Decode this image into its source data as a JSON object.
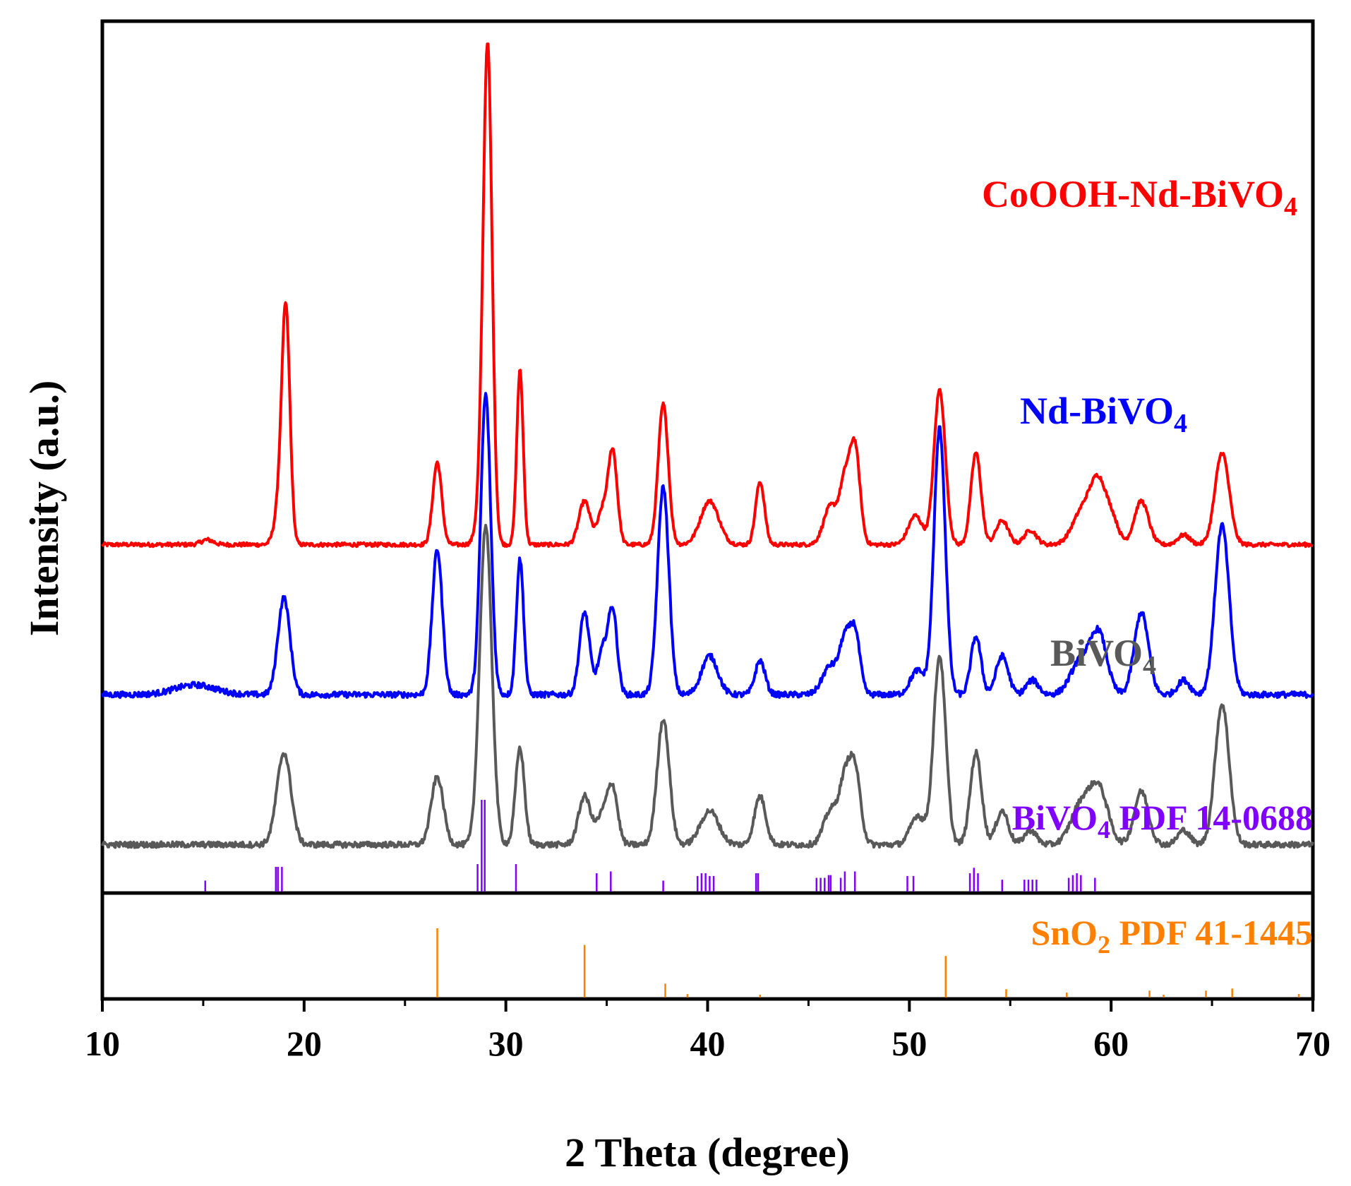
{
  "chart_data": {
    "type": "line",
    "title": "",
    "xlabel": "2 Theta (degree)",
    "ylabel": "Intensity (a.u.)",
    "xlim": [
      10,
      70
    ],
    "x_ticks": [
      "10",
      "20",
      "30",
      "40",
      "50",
      "60",
      "70"
    ],
    "grid": false,
    "series": [
      {
        "name": "CoOOH-Nd-BiVO4",
        "label_main": "CoOOH-Nd-BiVO",
        "label_sub": "4",
        "color": "#ff0000",
        "offset": 0.72,
        "noise": 0.004,
        "peaks": [
          [
            15.2,
            0.01,
            0.3
          ],
          [
            18.8,
            0.08,
            0.25
          ],
          [
            19.1,
            0.46,
            0.2
          ],
          [
            26.6,
            0.17,
            0.22
          ],
          [
            28.8,
            0.08,
            0.25
          ],
          [
            29.1,
            1.0,
            0.22
          ],
          [
            30.7,
            0.36,
            0.16
          ],
          [
            33.9,
            0.09,
            0.28
          ],
          [
            34.8,
            0.07,
            0.25
          ],
          [
            35.3,
            0.19,
            0.22
          ],
          [
            37.8,
            0.29,
            0.25
          ],
          [
            40.1,
            0.09,
            0.45
          ],
          [
            42.6,
            0.13,
            0.22
          ],
          [
            46.1,
            0.08,
            0.35
          ],
          [
            46.8,
            0.12,
            0.25
          ],
          [
            47.3,
            0.2,
            0.25
          ],
          [
            50.3,
            0.06,
            0.35
          ],
          [
            51.5,
            0.32,
            0.28
          ],
          [
            53.3,
            0.19,
            0.25
          ],
          [
            54.6,
            0.05,
            0.3
          ],
          [
            56.0,
            0.03,
            0.3
          ],
          [
            58.6,
            0.07,
            0.5
          ],
          [
            59.4,
            0.12,
            0.4
          ],
          [
            60.1,
            0.04,
            0.3
          ],
          [
            61.5,
            0.09,
            0.35
          ],
          [
            63.6,
            0.02,
            0.3
          ],
          [
            65.5,
            0.19,
            0.35
          ]
        ]
      },
      {
        "name": "Nd-BiVO4",
        "label_main": "Nd-BiVO",
        "label_sub": "4",
        "color": "#0000ff",
        "offset": 0.41,
        "noise": 0.006,
        "peaks": [
          [
            14.6,
            0.02,
            1.0
          ],
          [
            19.0,
            0.2,
            0.3
          ],
          [
            26.6,
            0.3,
            0.25
          ],
          [
            29.0,
            0.62,
            0.25
          ],
          [
            30.7,
            0.28,
            0.18
          ],
          [
            33.9,
            0.17,
            0.25
          ],
          [
            34.8,
            0.09,
            0.25
          ],
          [
            35.3,
            0.17,
            0.22
          ],
          [
            37.8,
            0.43,
            0.28
          ],
          [
            40.1,
            0.08,
            0.4
          ],
          [
            42.6,
            0.07,
            0.25
          ],
          [
            46.1,
            0.06,
            0.4
          ],
          [
            46.8,
            0.1,
            0.25
          ],
          [
            47.3,
            0.13,
            0.25
          ],
          [
            50.4,
            0.05,
            0.35
          ],
          [
            51.5,
            0.55,
            0.28
          ],
          [
            53.3,
            0.12,
            0.25
          ],
          [
            54.6,
            0.08,
            0.3
          ],
          [
            56.1,
            0.03,
            0.3
          ],
          [
            58.5,
            0.07,
            0.5
          ],
          [
            59.4,
            0.12,
            0.4
          ],
          [
            61.5,
            0.17,
            0.35
          ],
          [
            63.6,
            0.03,
            0.3
          ],
          [
            65.5,
            0.35,
            0.35
          ]
        ]
      },
      {
        "name": "BiVO4",
        "label_main": "BiVO",
        "label_sub": "4",
        "color": "#595959",
        "offset": 0.1,
        "noise": 0.006,
        "peaks": [
          [
            19.0,
            0.19,
            0.35
          ],
          [
            26.6,
            0.14,
            0.3
          ],
          [
            29.0,
            0.66,
            0.3
          ],
          [
            30.7,
            0.2,
            0.22
          ],
          [
            33.9,
            0.1,
            0.3
          ],
          [
            34.8,
            0.06,
            0.3
          ],
          [
            35.3,
            0.11,
            0.25
          ],
          [
            37.8,
            0.26,
            0.3
          ],
          [
            40.1,
            0.07,
            0.45
          ],
          [
            42.6,
            0.1,
            0.28
          ],
          [
            46.1,
            0.07,
            0.35
          ],
          [
            46.8,
            0.12,
            0.28
          ],
          [
            47.3,
            0.15,
            0.28
          ],
          [
            50.4,
            0.06,
            0.35
          ],
          [
            51.5,
            0.39,
            0.3
          ],
          [
            53.3,
            0.19,
            0.28
          ],
          [
            54.6,
            0.07,
            0.3
          ],
          [
            56.0,
            0.03,
            0.3
          ],
          [
            58.5,
            0.08,
            0.5
          ],
          [
            59.4,
            0.11,
            0.45
          ],
          [
            61.5,
            0.11,
            0.35
          ],
          [
            63.6,
            0.03,
            0.3
          ],
          [
            65.5,
            0.29,
            0.35
          ]
        ]
      }
    ],
    "reference_patterns": [
      {
        "name": "BiVO4 PDF 14-0688",
        "label_main": "BiVO",
        "label_sub": "4",
        "label_rest": " PDF 14-0688",
        "color": "#8000ff",
        "sticks": [
          [
            15.1,
            0.12
          ],
          [
            18.6,
            0.27
          ],
          [
            18.7,
            0.27
          ],
          [
            18.9,
            0.27
          ],
          [
            28.6,
            0.3
          ],
          [
            28.8,
            1.0
          ],
          [
            28.95,
            1.0
          ],
          [
            30.5,
            0.3
          ],
          [
            34.5,
            0.2
          ],
          [
            35.2,
            0.22
          ],
          [
            37.8,
            0.12
          ],
          [
            39.5,
            0.17
          ],
          [
            39.7,
            0.2
          ],
          [
            39.9,
            0.2
          ],
          [
            40.1,
            0.17
          ],
          [
            40.3,
            0.17
          ],
          [
            42.4,
            0.2
          ],
          [
            42.5,
            0.2
          ],
          [
            45.4,
            0.15
          ],
          [
            45.6,
            0.15
          ],
          [
            45.8,
            0.15
          ],
          [
            46.0,
            0.18
          ],
          [
            46.1,
            0.18
          ],
          [
            46.6,
            0.15
          ],
          [
            46.8,
            0.22
          ],
          [
            47.3,
            0.22
          ],
          [
            49.9,
            0.17
          ],
          [
            50.2,
            0.17
          ],
          [
            53.0,
            0.2
          ],
          [
            53.2,
            0.26
          ],
          [
            53.4,
            0.2
          ],
          [
            54.6,
            0.13
          ],
          [
            55.7,
            0.13
          ],
          [
            55.9,
            0.13
          ],
          [
            56.1,
            0.13
          ],
          [
            56.3,
            0.13
          ],
          [
            57.9,
            0.15
          ],
          [
            58.1,
            0.18
          ],
          [
            58.3,
            0.2
          ],
          [
            58.5,
            0.18
          ],
          [
            59.2,
            0.15
          ]
        ]
      },
      {
        "name": "SnO2 PDF 41-1445",
        "label_main": "SnO",
        "label_sub": "2",
        "label_rest": " PDF 41-1445",
        "color": "#ff8000",
        "sticks": [
          [
            26.6,
            1.0
          ],
          [
            33.9,
            0.76
          ],
          [
            37.9,
            0.2
          ],
          [
            39.0,
            0.05
          ],
          [
            42.6,
            0.04
          ],
          [
            51.8,
            0.6
          ],
          [
            54.8,
            0.12
          ],
          [
            57.8,
            0.07
          ],
          [
            61.9,
            0.1
          ],
          [
            62.6,
            0.04
          ],
          [
            64.7,
            0.1
          ],
          [
            66.0,
            0.13
          ],
          [
            69.3,
            0.05
          ]
        ]
      }
    ]
  }
}
